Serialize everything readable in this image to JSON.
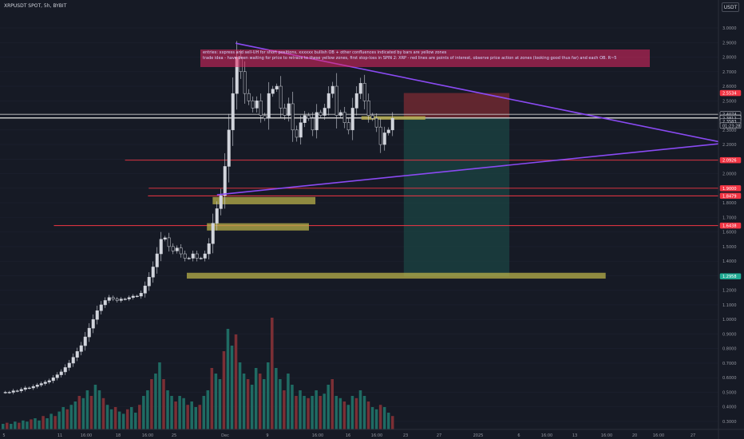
{
  "header": {
    "symbol": "XRPUSDT SPOT, 5h, BYBIT",
    "currency": "USDT"
  },
  "note": {
    "line1": "entries: xxpress and sell-UH for short positions, xxxxxx bullish OB + other confluences indicated by bars are yellow zones",
    "line2": "trade idea - have been waiting for price to retrace to these yellow zones, first stop-loss in SPIN 2: XRP - red lines are points of interest, observe price action at zones (looking good thus far) and each OB. R~5"
  },
  "chart_data": {
    "type": "candlestick",
    "title": "XRPUSDT SPOT, 5h, BYBIT",
    "y_axis": {
      "ticks": [
        "3.0000",
        "2.9000",
        "2.8000",
        "2.7000",
        "2.6000",
        "2.5000",
        "2.4000",
        "2.3000",
        "2.2000",
        "2.1000",
        "2.0000",
        "1.9000",
        "1.8000",
        "1.7000",
        "1.6000",
        "1.5000",
        "1.4000",
        "1.3000",
        "1.2000",
        "1.1000",
        "1.0000",
        "0.9000",
        "0.8000",
        "0.7000",
        "0.6000",
        "0.5000",
        "0.4000",
        "0.3000"
      ],
      "ylim": [
        0.27,
        3.09
      ]
    },
    "x_axis": {
      "ticks": [
        "5",
        "11",
        "16:00",
        "18",
        "16:00",
        "25",
        "Dec",
        "9",
        "16:00",
        "16",
        "16:00",
        "23",
        "27",
        "2025",
        "6",
        "16:00",
        "13",
        "16:00",
        "20",
        "16:00",
        "27"
      ]
    },
    "price_tags": [
      {
        "label": "2.5534",
        "value": 2.5534,
        "color": "#f23645"
      },
      {
        "label": "2.4074",
        "value": 2.4074,
        "color": "#ffffff"
      },
      {
        "label": "2.3843",
        "value": 2.3843,
        "color": "#ffffff"
      },
      {
        "label": "2.3812",
        "value": 2.3812,
        "color": "#ffffff"
      },
      {
        "label": "2.3583",
        "value": 2.3583,
        "color": "#ffffff"
      },
      {
        "label": "01:23:28",
        "value": 2.33,
        "color": "#ffffff"
      },
      {
        "label": "2.0926",
        "value": 2.0926,
        "color": "#f23645"
      },
      {
        "label": "1.9000",
        "value": 1.9,
        "color": "#f23645"
      },
      {
        "label": "1.8479",
        "value": 1.8479,
        "color": "#f23645"
      },
      {
        "label": "1.6438",
        "value": 1.6438,
        "color": "#f23645"
      },
      {
        "label": "1.2958",
        "value": 1.2958,
        "color": "#22ab94"
      }
    ],
    "horizontal_levels": [
      {
        "value": 2.0926,
        "x_from": 0.174,
        "color": "#f23645"
      },
      {
        "value": 1.9,
        "x_from": 0.207,
        "color": "#f23645"
      },
      {
        "value": 1.8479,
        "x_from": 0.206,
        "color": "#f23645"
      },
      {
        "value": 1.6438,
        "x_from": 0.075,
        "color": "#f23645"
      },
      {
        "value": 2.4074,
        "x_from": 0.0,
        "color": "#c8c8c8"
      },
      {
        "value": 2.3843,
        "x_from": 0.0,
        "color": "#c8c8c8"
      },
      {
        "value": 2.3812,
        "x_from": 0.0,
        "color": "#c8c8c8"
      }
    ],
    "yellow_zones": [
      {
        "x_from": 0.296,
        "x_to": 0.439,
        "y_top": 1.84,
        "y_bottom": 1.79
      },
      {
        "x_from": 0.288,
        "x_to": 0.43,
        "y_top": 1.66,
        "y_bottom": 1.61
      },
      {
        "x_from": 0.26,
        "x_to": 0.843,
        "y_top": 1.32,
        "y_bottom": 1.28
      },
      {
        "x_from": 0.503,
        "x_to": 0.592,
        "y_top": 2.395,
        "y_bottom": 2.37
      }
    ],
    "trend_lines": [
      {
        "from": [
          0.328,
          2.895
        ],
        "to": [
          1.0,
          2.22
        ],
        "color": "#8a4af3"
      },
      {
        "from": [
          0.302,
          1.855
        ],
        "to": [
          1.0,
          2.205
        ],
        "color": "#8a4af3"
      }
    ],
    "position": {
      "x_from": 0.562,
      "x_to": 0.709,
      "stop": 2.5534,
      "entry": 2.3812,
      "target": 1.2958,
      "loss_color": "#8b2c34",
      "profit_color": "#1b4a47"
    },
    "series": [
      {
        "values": [
          0.5,
          0.5,
          0.51,
          0.51,
          0.52,
          0.53,
          0.53,
          0.54,
          0.55,
          0.56,
          0.57,
          0.58,
          0.6,
          0.62,
          0.64,
          0.67,
          0.7,
          0.74,
          0.78,
          0.82,
          0.88,
          0.94,
          1.0,
          1.06,
          1.1,
          1.13,
          1.15,
          1.14,
          1.13,
          1.14,
          1.14,
          1.15,
          1.16,
          1.16,
          1.18,
          1.23,
          1.29,
          1.36,
          1.45,
          1.55,
          1.56,
          1.5,
          1.47,
          1.49,
          1.45,
          1.42,
          1.42,
          1.45,
          1.42,
          1.42,
          1.45,
          1.52,
          1.66,
          1.76,
          1.85,
          2.05,
          2.3,
          2.55,
          2.8,
          2.7,
          2.55,
          2.5,
          2.45,
          2.5,
          2.4,
          2.38,
          2.55,
          2.58,
          2.6,
          2.45,
          2.4,
          2.48,
          2.3,
          2.25,
          2.35,
          2.4,
          2.38,
          2.3,
          2.42,
          2.4,
          2.45,
          2.55,
          2.6,
          2.4,
          2.42,
          2.35,
          2.3,
          2.45,
          2.55,
          2.62,
          2.5,
          2.4,
          2.38,
          2.32,
          2.2,
          2.28,
          2.3,
          2.38
        ]
      }
    ],
    "volume": [
      0.05,
      0.06,
      0.05,
      0.07,
      0.06,
      0.08,
      0.07,
      0.09,
      0.1,
      0.08,
      0.12,
      0.1,
      0.14,
      0.12,
      0.16,
      0.2,
      0.18,
      0.22,
      0.25,
      0.3,
      0.28,
      0.35,
      0.3,
      0.4,
      0.35,
      0.28,
      0.22,
      0.18,
      0.2,
      0.16,
      0.14,
      0.18,
      0.2,
      0.15,
      0.22,
      0.3,
      0.35,
      0.45,
      0.5,
      0.6,
      0.45,
      0.35,
      0.3,
      0.25,
      0.3,
      0.28,
      0.22,
      0.25,
      0.2,
      0.22,
      0.3,
      0.35,
      0.55,
      0.5,
      0.45,
      0.7,
      0.9,
      0.75,
      0.85,
      0.6,
      0.5,
      0.45,
      0.4,
      0.55,
      0.5,
      0.45,
      0.6,
      1.0,
      0.55,
      0.45,
      0.35,
      0.5,
      0.4,
      0.3,
      0.35,
      0.3,
      0.28,
      0.3,
      0.35,
      0.3,
      0.32,
      0.4,
      0.45,
      0.3,
      0.28,
      0.25,
      0.22,
      0.3,
      0.28,
      0.35,
      0.3,
      0.25,
      0.2,
      0.18,
      0.22,
      0.2,
      0.15,
      0.12
    ],
    "colors": {
      "background": "#161a25",
      "up": "#26a69a",
      "down": "#ef5350",
      "candle": "#d1d4dc",
      "grid": "#1e2230"
    }
  }
}
